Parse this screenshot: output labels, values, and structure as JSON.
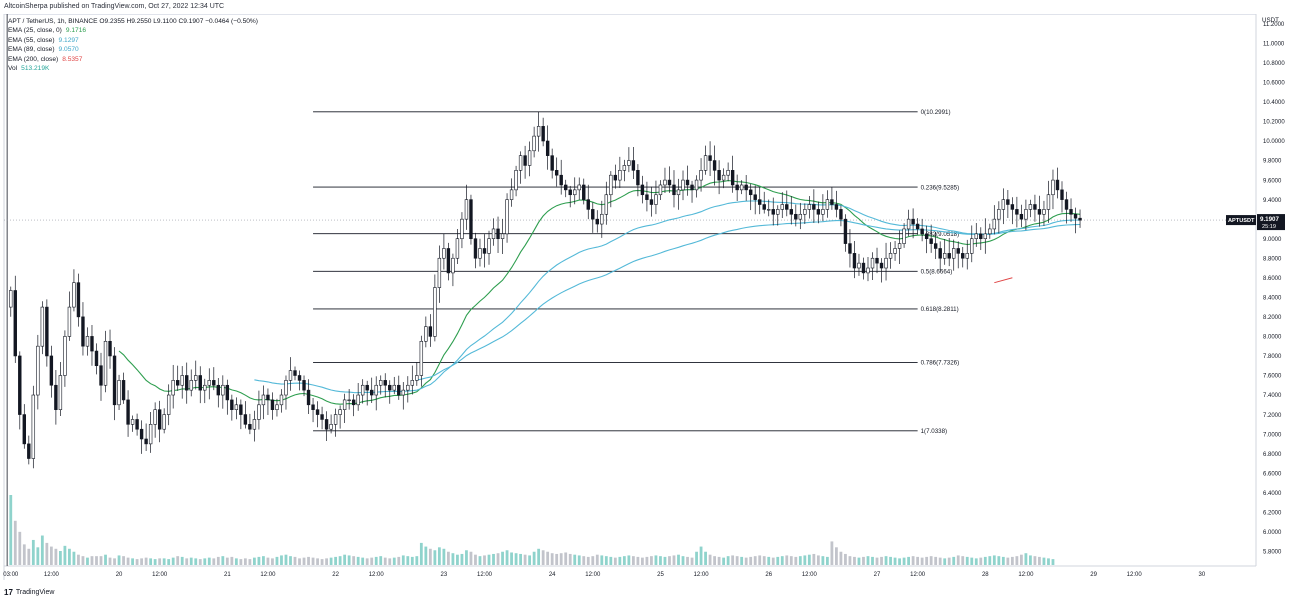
{
  "header": {
    "published": "AltcoinSherpa published on TradingView.com, Oct 27, 2022 12:34 UTC"
  },
  "legend": {
    "symbol_line": "APT / TetherUS, 1h, BINANCE  O9.2355  H9.2550  L9.1100  C9.1907  −0.0464 (−0.50%)",
    "ema_rows": [
      {
        "label": "EMA (25, close, 0)",
        "value": "9.1716",
        "color": "#2e9e4f"
      },
      {
        "label": "EMA (55, close)",
        "value": "9.1297",
        "color": "#3fa7c9"
      },
      {
        "label": "EMA (89, close)",
        "value": "9.0570",
        "color": "#3fa7c9"
      },
      {
        "label": "EMA (200, close)",
        "value": "8.5357",
        "color": "#e04646"
      }
    ],
    "vol_label": "Vol",
    "vol_value": "513.219K"
  },
  "footer": {
    "logo_text": "TradingView",
    "logo_glyph": "17"
  },
  "price_scale": {
    "unit": "USDT",
    "ticks": [
      "11.2000",
      "11.0000",
      "10.8000",
      "10.6000",
      "10.4000",
      "10.2000",
      "10.0000",
      "9.8000",
      "9.6000",
      "9.4000",
      "9.2000",
      "9.0000",
      "8.8000",
      "8.6000",
      "8.4000",
      "8.2000",
      "8.0000",
      "7.8000",
      "7.6000",
      "7.4000",
      "7.2000",
      "7.0000",
      "6.8000",
      "6.6000",
      "6.4000",
      "6.2000",
      "6.0000",
      "5.8000"
    ],
    "tick_values": [
      11.2,
      11.0,
      10.8,
      10.6,
      10.4,
      10.2,
      10.0,
      9.8,
      9.6,
      9.4,
      9.2,
      9.0,
      8.8,
      8.6,
      8.4,
      8.2,
      8.0,
      7.8,
      7.6,
      7.4,
      7.2,
      7.0,
      6.8,
      6.6,
      6.4,
      6.2,
      6.0,
      5.8
    ]
  },
  "time_scale": {
    "labels": [
      "03:00",
      "12:00",
      "20",
      "12:00",
      "21",
      "12:00",
      "22",
      "12:00",
      "23",
      "12:00",
      "24",
      "12:00",
      "25",
      "12:00",
      "26",
      "12:00",
      "27",
      "12:00",
      "28",
      "12:00",
      "29",
      "12:00",
      "30"
    ],
    "hours": [
      0,
      9,
      24,
      33,
      48,
      57,
      72,
      81,
      96,
      105,
      120,
      129,
      144,
      153,
      168,
      177,
      192,
      201,
      216,
      225,
      240,
      249,
      264
    ]
  },
  "chart_data": {
    "type": "candlestick",
    "symbol": "APTUSDT",
    "interval": "1h",
    "exchange": "BINANCE",
    "ylim": [
      5.65,
      11.3
    ],
    "x_unit": "hours since Oct 19 03:00 UTC",
    "xlim": [
      -1.5,
      276
    ],
    "last_price": {
      "label": "APTUSDT",
      "value": "9.1907",
      "countdown": "25:19"
    },
    "ohlc_last": {
      "open": 9.2355,
      "high": 9.255,
      "low": 9.11,
      "close": 9.1907
    },
    "fib_retracement": [
      {
        "ratio": "0",
        "label": "0(10.2991)",
        "price": 10.2991
      },
      {
        "ratio": "0.236",
        "label": "0.236(9.5285)",
        "price": 9.5285
      },
      {
        "ratio": "0.382",
        "label": "0.382(9.0518)",
        "price": 9.0518
      },
      {
        "ratio": "0.5",
        "label": "0.5(8.6664)",
        "price": 8.6664
      },
      {
        "ratio": "0.618",
        "label": "0.618(8.2811)",
        "price": 8.2811
      },
      {
        "ratio": "0.786",
        "label": "0.786(7.7326)",
        "price": 7.7326
      },
      {
        "ratio": "1",
        "label": "1(7.0338)",
        "price": 7.0338
      }
    ],
    "fib_start_hour": 67,
    "fib_end_hour": 201,
    "closes": [
      8.47,
      7.8,
      7.2,
      6.9,
      6.75,
      7.4,
      7.9,
      8.3,
      7.8,
      7.5,
      7.25,
      7.6,
      8.0,
      8.3,
      8.55,
      8.2,
      7.9,
      8.0,
      7.85,
      7.7,
      7.5,
      7.95,
      7.8,
      7.3,
      7.55,
      7.35,
      7.1,
      7.15,
      7.05,
      6.95,
      6.9,
      7.1,
      7.25,
      7.05,
      7.2,
      7.4,
      7.55,
      7.5,
      7.6,
      7.45,
      7.55,
      7.6,
      7.45,
      7.5,
      7.55,
      7.5,
      7.4,
      7.5,
      7.35,
      7.25,
      7.3,
      7.2,
      7.1,
      7.05,
      7.15,
      7.3,
      7.4,
      7.35,
      7.25,
      7.3,
      7.4,
      7.55,
      7.65,
      7.6,
      7.55,
      7.45,
      7.3,
      7.25,
      7.2,
      7.15,
      7.05,
      7.1,
      7.2,
      7.25,
      7.35,
      7.35,
      7.3,
      7.4,
      7.5,
      7.45,
      7.4,
      7.5,
      7.55,
      7.5,
      7.45,
      7.5,
      7.4,
      7.45,
      7.5,
      7.55,
      7.6,
      7.95,
      8.1,
      8.0,
      8.5,
      8.8,
      8.9,
      8.65,
      8.8,
      9.0,
      9.2,
      9.4,
      9.0,
      8.8,
      8.9,
      8.85,
      9.0,
      9.1,
      9.0,
      9.05,
      9.4,
      9.5,
      9.7,
      9.85,
      9.75,
      9.9,
      10.05,
      10.15,
      10.0,
      9.85,
      9.7,
      9.65,
      9.55,
      9.5,
      9.45,
      9.5,
      9.55,
      9.4,
      9.3,
      9.2,
      9.15,
      9.25,
      9.45,
      9.65,
      9.6,
      9.7,
      9.75,
      9.8,
      9.7,
      9.55,
      9.45,
      9.4,
      9.35,
      9.45,
      9.55,
      9.6,
      9.55,
      9.45,
      9.5,
      9.6,
      9.55,
      9.5,
      9.6,
      9.7,
      9.85,
      9.8,
      9.7,
      9.6,
      9.65,
      9.7,
      9.55,
      9.5,
      9.55,
      9.5,
      9.45,
      9.4,
      9.35,
      9.3,
      9.3,
      9.25,
      9.3,
      9.35,
      9.3,
      9.25,
      9.2,
      9.25,
      9.3,
      9.35,
      9.3,
      9.25,
      9.3,
      9.4,
      9.35,
      9.3,
      9.2,
      8.95,
      8.85,
      8.7,
      8.75,
      8.65,
      8.7,
      8.8,
      8.75,
      8.7,
      8.8,
      8.85,
      8.9,
      8.95,
      9.1,
      9.2,
      9.15,
      9.1,
      9.05,
      9.0,
      8.95,
      8.9,
      8.8,
      8.85,
      8.8,
      8.9,
      8.85,
      8.8,
      8.85,
      9.0,
      9.05,
      9.0,
      9.05,
      9.1,
      9.2,
      9.3,
      9.4,
      9.35,
      9.3,
      9.25,
      9.2,
      9.3,
      9.35,
      9.3,
      9.25,
      9.3,
      9.45,
      9.6,
      9.5,
      9.4,
      9.3,
      9.25,
      9.21,
      9.19
    ],
    "ema_lines": [
      {
        "name": "EMA 25",
        "color": "#2e9e4f",
        "start_hour": 24
      },
      {
        "name": "EMA 55",
        "color": "#54b9d8",
        "start_hour": 54
      },
      {
        "name": "EMA 89",
        "color": "#54b9d8",
        "start_hour": 90
      }
    ],
    "annotation_line": {
      "color": "#e04646",
      "price_from": 8.55,
      "price_to": 8.6,
      "hour_from": 218,
      "hour_to": 222
    },
    "volumes": [
      95,
      60,
      45,
      28,
      22,
      34,
      24,
      40,
      30,
      25,
      22,
      19,
      26,
      22,
      18,
      14,
      12,
      10,
      12,
      12,
      12,
      14,
      10,
      9,
      13,
      12,
      10,
      9,
      8,
      9,
      10,
      9,
      8,
      9,
      9,
      8,
      10,
      12,
      11,
      9,
      10,
      9,
      8,
      9,
      10,
      9,
      11,
      12,
      10,
      11,
      9,
      8,
      9,
      8,
      10,
      11,
      12,
      10,
      9,
      11,
      13,
      14,
      12,
      11,
      9,
      10,
      11,
      10,
      9,
      8,
      9,
      10,
      11,
      12,
      14,
      13,
      12,
      11,
      10,
      9,
      10,
      11,
      12,
      10,
      9,
      10,
      11,
      13,
      12,
      11,
      12,
      30,
      25,
      22,
      20,
      24,
      22,
      18,
      16,
      14,
      15,
      20,
      18,
      14,
      12,
      13,
      14,
      15,
      16,
      18,
      20,
      17,
      16,
      15,
      14,
      13,
      18,
      22,
      20,
      18,
      16,
      15,
      16,
      17,
      15,
      14,
      13,
      12,
      11,
      12,
      14,
      13,
      12,
      11,
      10,
      11,
      12,
      13,
      12,
      11,
      10,
      11,
      12,
      13,
      12,
      11,
      12,
      13,
      14,
      12,
      11,
      10,
      18,
      25,
      18,
      14,
      12,
      11,
      10,
      12,
      13,
      12,
      11,
      10,
      11,
      12,
      13,
      12,
      11,
      10,
      11,
      12,
      13,
      12,
      11,
      12,
      13,
      14,
      15,
      13,
      12,
      11,
      32,
      24,
      18,
      15,
      12,
      11,
      10,
      11,
      12,
      11,
      10,
      11,
      12,
      11,
      10,
      9,
      10,
      11,
      12,
      11,
      10,
      11,
      12,
      11,
      10,
      9,
      10,
      11,
      13,
      12,
      11,
      10,
      9,
      10,
      11,
      12,
      13,
      12,
      11,
      10,
      11,
      12,
      14,
      16,
      13,
      12,
      11,
      10,
      9,
      8
    ]
  }
}
